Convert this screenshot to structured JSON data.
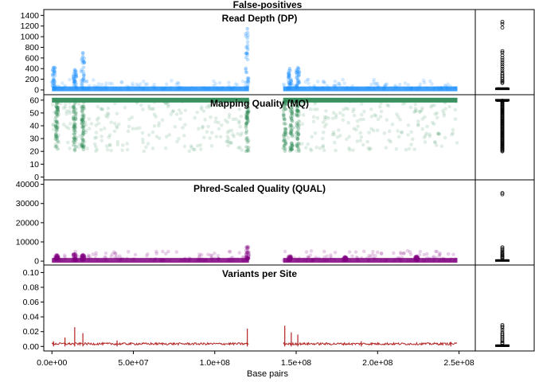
{
  "title": "False-positives",
  "xlabel": "Base pairs",
  "x_ticks": [
    "0.0e+00",
    "5.0e+07",
    "1.0e+08",
    "1.5e+08",
    "2.0e+08",
    "2.5e+08"
  ],
  "x_tick_values": [
    0,
    50000000,
    100000000,
    150000000,
    200000000,
    250000000
  ],
  "x_range": [
    -5000000,
    260000000
  ],
  "gap_range": [
    121000000,
    142000000
  ],
  "chart_data": [
    {
      "type": "scatter",
      "title": "Read Depth (DP)",
      "color": "#1e90ff",
      "yticks": [
        0,
        200,
        400,
        600,
        800,
        1000,
        1200,
        1400
      ],
      "ylim": [
        -60,
        1480
      ],
      "baseline": 20,
      "cluster_peaks": [
        {
          "x": 1000000,
          "y": 420
        },
        {
          "x": 14000000,
          "y": 380
        },
        {
          "x": 19000000,
          "y": 700
        },
        {
          "x": 120000000,
          "y": 1150
        },
        {
          "x": 146000000,
          "y": 400
        },
        {
          "x": 151000000,
          "y": 420
        }
      ],
      "boxplot": {
        "median": 20,
        "q1": 8,
        "q3": 40,
        "outliers": [
          1170,
          1240,
          1280,
          730,
          700,
          650,
          600,
          560,
          520,
          480,
          440,
          400,
          360,
          320,
          290,
          260,
          230,
          200,
          170,
          150,
          130
        ]
      }
    },
    {
      "type": "scatter",
      "title": "Mapping Quality (MQ)",
      "color": "#2e8b57",
      "yticks": [
        0,
        10,
        20,
        30,
        40,
        50,
        60
      ],
      "ylim": [
        -1,
        63
      ],
      "baseline": 60,
      "scatter_range": [
        20,
        60
      ],
      "dense_columns_x": [
        3000000,
        14000000,
        19000000,
        120000000,
        143000000,
        147000000,
        151000000
      ],
      "boxplot": {
        "median": 60,
        "q1": 60,
        "q3": 60,
        "outlier_range": [
          20,
          60
        ]
      }
    },
    {
      "type": "scatter",
      "title": "Phred-Scaled Quality (QUAL)",
      "color": "#800080",
      "yticks": [
        0,
        10000,
        20000,
        30000,
        40000
      ],
      "ylim": [
        -1200,
        41500
      ],
      "baseline": 400,
      "cluster_peaks": [
        {
          "x": 3000000,
          "y": 3200
        },
        {
          "x": 14000000,
          "y": 3800
        },
        {
          "x": 19000000,
          "y": 3300
        },
        {
          "x": 120000000,
          "y": 7500
        },
        {
          "x": 146000000,
          "y": 2600
        },
        {
          "x": 180000000,
          "y": 2200
        },
        {
          "x": 224000000,
          "y": 2500
        }
      ],
      "boxplot": {
        "median": 300,
        "q1": 100,
        "q3": 700,
        "outliers": [
          35500,
          34800,
          7200,
          6500,
          5800,
          5100,
          4500,
          3900,
          3300,
          2800,
          2300,
          1900,
          1500
        ]
      }
    },
    {
      "type": "line",
      "title": "Variants per Site",
      "color": "#b22222",
      "yticks": [
        "0.00",
        "0.02",
        "0.04",
        "0.06",
        "0.08",
        "0.10"
      ],
      "ylim": [
        -0.004,
        0.108
      ],
      "baseline": 0.002,
      "spikes": [
        {
          "x": 1000000,
          "y": 0.007
        },
        {
          "x": 8000000,
          "y": 0.012
        },
        {
          "x": 14000000,
          "y": 0.026
        },
        {
          "x": 19000000,
          "y": 0.018
        },
        {
          "x": 40000000,
          "y": 0.008
        },
        {
          "x": 120000000,
          "y": 0.024
        },
        {
          "x": 143000000,
          "y": 0.028
        },
        {
          "x": 147000000,
          "y": 0.019
        },
        {
          "x": 151000000,
          "y": 0.016
        },
        {
          "x": 190000000,
          "y": 0.007
        },
        {
          "x": 245000000,
          "y": 0.006
        }
      ],
      "boxplot": {
        "median": 0.001,
        "q1": 0.0,
        "q3": 0.002,
        "outliers": [
          0.029,
          0.027,
          0.025,
          0.022,
          0.019,
          0.017,
          0.015,
          0.013,
          0.011,
          0.009,
          0.007,
          0.005,
          0.004
        ]
      }
    }
  ]
}
